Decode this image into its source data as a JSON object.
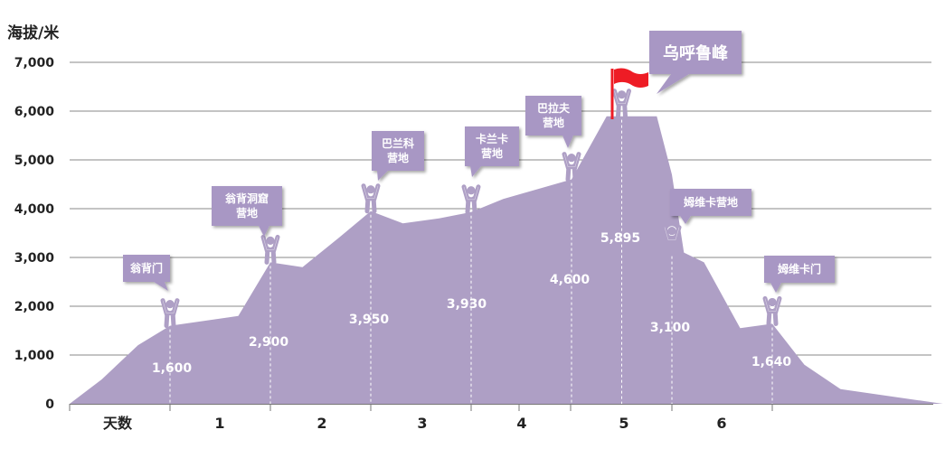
{
  "chart_data": {
    "type": "area",
    "ylabel": "海拔/米",
    "xlabel": "天数",
    "ylim": [
      0,
      7000
    ],
    "yticks": [
      0,
      1000,
      2000,
      3000,
      4000,
      5000,
      6000,
      7000
    ],
    "ytick_labels": [
      "0",
      "1,000",
      "2,000",
      "3,000",
      "4,000",
      "5,000",
      "6,000",
      "7,000"
    ],
    "day_labels": [
      "1",
      "2",
      "3",
      "4",
      "5",
      "6"
    ],
    "profile": [
      [
        0.0,
        0
      ],
      [
        0.32,
        500
      ],
      [
        0.68,
        1200
      ],
      [
        1.0,
        1600
      ],
      [
        1.68,
        1800
      ],
      [
        2.0,
        2900
      ],
      [
        2.32,
        2800
      ],
      [
        2.68,
        3400
      ],
      [
        3.0,
        3950
      ],
      [
        3.32,
        3700
      ],
      [
        3.68,
        3800
      ],
      [
        4.0,
        3930
      ],
      [
        4.32,
        4200
      ],
      [
        5.0,
        4600
      ],
      [
        5.35,
        5895
      ],
      [
        5.85,
        5895
      ],
      [
        6.0,
        4700
      ],
      [
        6.12,
        3100
      ],
      [
        6.32,
        2900
      ],
      [
        6.68,
        1550
      ],
      [
        7.0,
        1640
      ],
      [
        7.32,
        800
      ],
      [
        7.68,
        300
      ],
      [
        8.7,
        0
      ]
    ],
    "waypoints": [
      {
        "x": 1.0,
        "altitude": 1600,
        "label": "1,600",
        "callout": [
          "翁背门"
        ]
      },
      {
        "x": 2.0,
        "altitude": 2900,
        "label": "2,900",
        "callout": [
          "翁背洞窟",
          "营地"
        ]
      },
      {
        "x": 3.0,
        "altitude": 3950,
        "label": "3,950",
        "callout": [
          "巴兰科",
          "营地"
        ]
      },
      {
        "x": 4.0,
        "altitude": 3930,
        "label": "3,930",
        "callout": [
          "卡兰卡",
          "营地"
        ]
      },
      {
        "x": 5.0,
        "altitude": 4600,
        "label": "4,600",
        "callout": [
          "巴拉夫",
          "营地"
        ]
      },
      {
        "x": 5.5,
        "altitude": 5895,
        "label": "5,895",
        "callout": [
          "乌呼鲁峰"
        ]
      },
      {
        "x": 6.0,
        "altitude": 3100,
        "label": "3,100",
        "callout": [
          "姆维卡营地"
        ]
      },
      {
        "x": 7.0,
        "altitude": 1640,
        "label": "1,640",
        "callout": [
          "姆维卡门"
        ]
      }
    ],
    "colors": {
      "area": "#ae9fc5",
      "callout": "#a897c4",
      "flag": "#ee1c25",
      "grid": "#888888",
      "divider": "#ffffff"
    }
  }
}
